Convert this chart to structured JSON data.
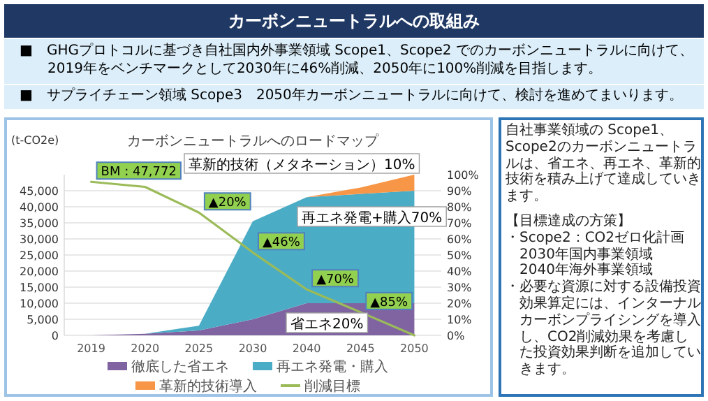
{
  "chart_data": {
    "type": "area",
    "stacked": true,
    "title": "カーボンニュートラルへの取組み",
    "subtitle": "カーボンニュートラルへのロードマップ",
    "ylabel": "(t-CO2e)",
    "categories": [
      "2019",
      "2020",
      "2025",
      "2030",
      "2040",
      "2045",
      "2050"
    ],
    "series": [
      {
        "name": "徹底した省エネ",
        "color": "#8064a2",
        "axis": "y2",
        "values": [
          0,
          1,
          3,
          10,
          20,
          20,
          20
        ]
      },
      {
        "name": "再エネ発電・購入",
        "color": "#4bacc6",
        "axis": "y2",
        "values": [
          0,
          0,
          3,
          61,
          66,
          68,
          70
        ]
      },
      {
        "name": "革新的技術導入",
        "color": "#f79646",
        "axis": "y2",
        "values": [
          0,
          0,
          0,
          0,
          0,
          4,
          10
        ]
      },
      {
        "name": "削減目標",
        "color": "#9bbb59",
        "type": "line",
        "axis": "y",
        "values": [
          47772,
          46200,
          38200,
          25800,
          14300,
          7200,
          0
        ]
      }
    ],
    "ylim": [
      0,
      50000
    ],
    "yticks": [
      {
        "value": 0,
        "label": "0"
      },
      {
        "value": 5000,
        "label": "5,000"
      },
      {
        "value": 10000,
        "label": "10,000"
      },
      {
        "value": 15000,
        "label": "15,000"
      },
      {
        "value": 20000,
        "label": "20,000"
      },
      {
        "value": 25000,
        "label": "25,000"
      },
      {
        "value": 30000,
        "label": "30,000"
      },
      {
        "value": 35000,
        "label": "35,000"
      },
      {
        "value": 40000,
        "label": "40,000"
      },
      {
        "value": 45000,
        "label": "45,000"
      }
    ],
    "y2lim": [
      0,
      100
    ],
    "y2ticks": [
      {
        "value": 0,
        "label": "0%"
      },
      {
        "value": 10,
        "label": "10%"
      },
      {
        "value": 20,
        "label": "20%"
      },
      {
        "value": 30,
        "label": "30%"
      },
      {
        "value": 40,
        "label": "40%"
      },
      {
        "value": 50,
        "label": "50%"
      },
      {
        "value": 60,
        "label": "60%"
      },
      {
        "value": 70,
        "label": "70%"
      },
      {
        "value": 80,
        "label": "80%"
      },
      {
        "value": 90,
        "label": "90%"
      },
      {
        "value": 100,
        "label": "100%"
      }
    ],
    "grid": "y",
    "legend": "bottom",
    "annotations": [
      "■　GHGプロトコルに基づき自社国内外事業領域 Scope1、Scope2 でのカーボンニュートラルに向けて、2019年をベンチマークとして2030年に46%削減、2050年に100%削減を目指します。",
      "■　サプライチェーン領域 Scope3　2050年カーボンニュートラルに向けて、検討を進めてまいります。",
      "自社事業領域の Scope1、Scope2のカーボンニュートラルは、省エネ、再エネ、革新的技術を積み上げて達成していきます。",
      "【目標達成の方策】",
      "・Scope2：CO2ゼロ化計画",
      "2030年国内事業領域",
      "2040年海外事業領域",
      "・必要な資源に対する設備投資効果算定には、インターナルカーボンプライシングを導入し、CO2削減効果を考慮した投資効果判断を追加していきます。",
      "革新的技術（メタネーション）10%",
      "再エネ発電+購入70%",
      "省エネ20%",
      {
        "text": "BM : 47,772",
        "x": "2019",
        "y": 47772
      },
      {
        "text": "▲20%",
        "x": "2025",
        "y": 38200
      },
      {
        "text": "▲46%",
        "x": "2030",
        "y": 25800
      },
      {
        "text": "▲70%",
        "x": "2040",
        "y": 14300
      },
      {
        "text": "▲85%",
        "x": "2045",
        "y": 7200
      }
    ]
  }
}
